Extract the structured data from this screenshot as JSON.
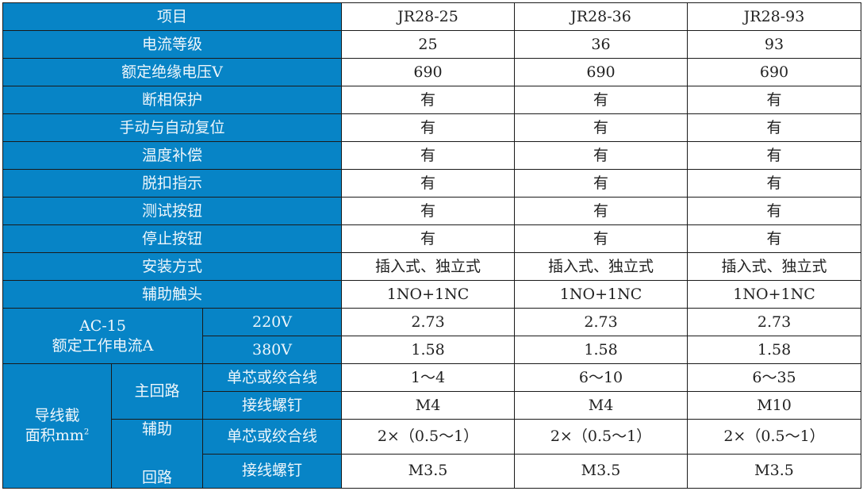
{
  "header": {
    "label": "项目",
    "models": [
      "JR28-25",
      "JR28-36",
      "JR28-93"
    ]
  },
  "rows": [
    {
      "label": "电流等级",
      "values": [
        "25",
        "36",
        "93"
      ]
    },
    {
      "label": "额定绝缘电压V",
      "values": [
        "690",
        "690",
        "690"
      ]
    },
    {
      "label": "断相保护",
      "values": [
        "有",
        "有",
        "有"
      ]
    },
    {
      "label": "手动与自动复位",
      "values": [
        "有",
        "有",
        "有"
      ]
    },
    {
      "label": "温度补偿",
      "values": [
        "有",
        "有",
        "有"
      ]
    },
    {
      "label": "脱扣指示",
      "values": [
        "有",
        "有",
        "有"
      ]
    },
    {
      "label": "测试按钮",
      "values": [
        "有",
        "有",
        "有"
      ]
    },
    {
      "label": "停止按钮",
      "values": [
        "有",
        "有",
        "有"
      ]
    },
    {
      "label": "安装方式",
      "values": [
        "插入式、独立式",
        "插入式、独立式",
        "插入式、独立式"
      ]
    },
    {
      "label": "辅助触头",
      "values": [
        "1NO+1NC",
        "1NO+1NC",
        "1NO+1NC"
      ]
    }
  ],
  "ac15": {
    "line1": "AC-15",
    "line2": "额定工作电流A",
    "rows": [
      {
        "label": "220V",
        "values": [
          "2.73",
          "2.73",
          "2.73"
        ]
      },
      {
        "label": "380V",
        "values": [
          "1.58",
          "1.58",
          "1.58"
        ]
      }
    ]
  },
  "wire": {
    "line1": "导线截",
    "line2": "面积mm",
    "sup": "2",
    "main": {
      "label": "主回路",
      "rows": [
        {
          "label": "单芯或绞合线",
          "values": [
            "1～4",
            "6～10",
            "6～35"
          ]
        },
        {
          "label": "接线螺钉",
          "values": [
            "M4",
            "M4",
            "M10"
          ]
        }
      ]
    },
    "aux": {
      "line1": "辅助",
      "line2": "回路",
      "rows": [
        {
          "label": "单芯或绞合线",
          "values": [
            "2×（0.5～1）",
            "2×（0.5～1）",
            "2×（0.5～1）"
          ]
        },
        {
          "label": "接线螺钉",
          "values": [
            "M3.5",
            "M3.5",
            "M3.5"
          ]
        }
      ]
    }
  }
}
